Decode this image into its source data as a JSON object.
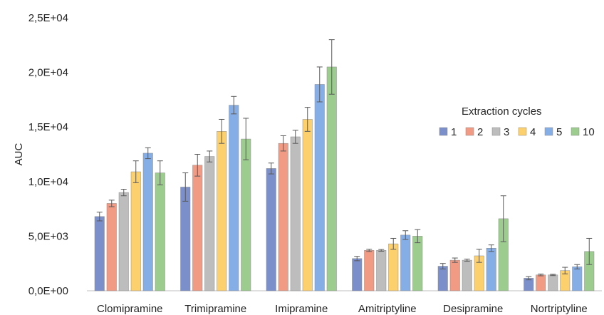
{
  "chart_data": {
    "type": "bar",
    "ylabel": "AUC",
    "ylim": [
      0,
      25000
    ],
    "yticks": [
      0,
      5000,
      10000,
      15000,
      20000,
      25000
    ],
    "ytick_labels": [
      "0,0E+00",
      "5,0E+03",
      "1,0E+04",
      "1,5E+04",
      "2,0E+04",
      "2,5E+04"
    ],
    "categories": [
      "Clomipramine",
      "Trimipramine",
      "Imipramine",
      "Amitriptyline",
      "Desipramine",
      "Nortriptyline"
    ],
    "legend_title": "Extraction cycles",
    "legend_position": "right",
    "grid": false,
    "series": [
      {
        "name": "1",
        "color": "#7b8fcb",
        "values": [
          6800,
          9500,
          11200,
          2950,
          2250,
          1150
        ],
        "errors": [
          400,
          1300,
          500,
          200,
          250,
          150
        ]
      },
      {
        "name": "2",
        "color": "#f19a84",
        "values": [
          8000,
          11500,
          13500,
          3700,
          2800,
          1450
        ],
        "errors": [
          300,
          1000,
          700,
          100,
          200,
          80
        ]
      },
      {
        "name": "3",
        "color": "#bdbdbd",
        "values": [
          9000,
          12300,
          14100,
          3700,
          2800,
          1450
        ],
        "errors": [
          300,
          500,
          600,
          80,
          100,
          60
        ]
      },
      {
        "name": "4",
        "color": "#fdd06e",
        "values": [
          10900,
          14600,
          15700,
          4300,
          3200,
          1850
        ],
        "errors": [
          1000,
          1100,
          1100,
          500,
          600,
          300
        ]
      },
      {
        "name": "5",
        "color": "#86aee6",
        "values": [
          12600,
          17000,
          18900,
          5100,
          3900,
          2200
        ],
        "errors": [
          500,
          800,
          1600,
          400,
          300,
          200
        ]
      },
      {
        "name": "10",
        "color": "#9ccc8e",
        "values": [
          10800,
          13900,
          20500,
          5000,
          6600,
          3600
        ],
        "errors": [
          1100,
          1900,
          2500,
          600,
          2100,
          1200
        ]
      }
    ]
  }
}
